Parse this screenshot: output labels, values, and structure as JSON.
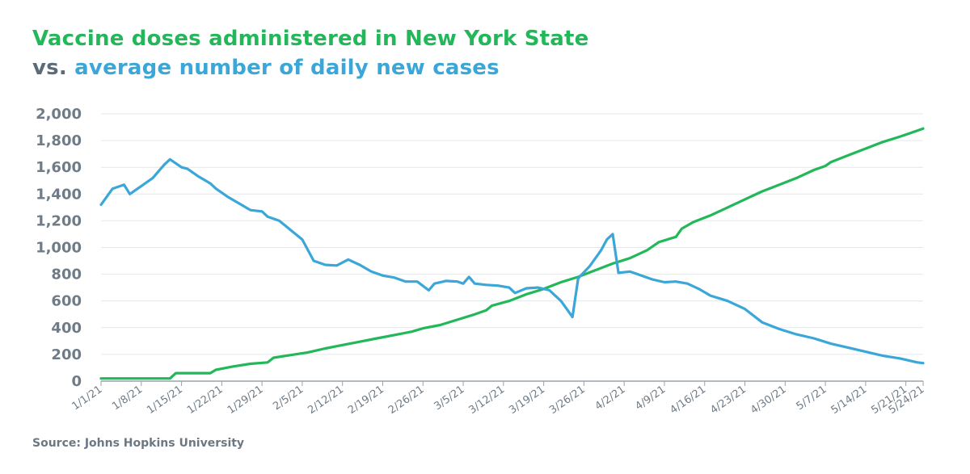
{
  "chart_data": {
    "type": "line",
    "title": "Vaccine doses administered in New York State",
    "subtitle_prefix": "vs.",
    "subtitle": "average number of daily new cases",
    "source": "Source: Johns Hopkins University",
    "xlabel": "",
    "ylabel": "",
    "ylim": [
      0,
      2000
    ],
    "yticks": [
      0,
      200,
      400,
      600,
      800,
      1000,
      1200,
      1400,
      1600,
      1800,
      2000
    ],
    "ytick_labels": [
      "0",
      "200",
      "400",
      "600",
      "800",
      "1,000",
      "1,200",
      "1,400",
      "1,600",
      "1,800",
      "2,000"
    ],
    "xlim": [
      "2021-01-01",
      "2021-05-24"
    ],
    "xticks": [
      "2021-01-01",
      "2021-01-08",
      "2021-01-15",
      "2021-01-22",
      "2021-01-29",
      "2021-02-05",
      "2021-02-12",
      "2021-02-19",
      "2021-02-26",
      "2021-03-05",
      "2021-03-12",
      "2021-03-19",
      "2021-03-26",
      "2021-04-02",
      "2021-04-09",
      "2021-04-16",
      "2021-04-23",
      "2021-04-30",
      "2021-05-07",
      "2021-05-14",
      "2021-05-21",
      "2021-05-24"
    ],
    "xtick_labels": [
      "1/1/21",
      "1/8/21",
      "1/15/21",
      "1/22/21",
      "1/29/21",
      "2/5/21",
      "2/12/21",
      "2/19/21",
      "2/26/21",
      "3/5/21",
      "3/12/21",
      "3/19/21",
      "3/26/21",
      "4/2/21",
      "4/9/21",
      "4/16/21",
      "4/23/21",
      "4/30/21",
      "5/7/21",
      "5/14/21",
      "5/21/21",
      "5/24/21"
    ],
    "grid": true,
    "legend": "none",
    "series": [
      {
        "key": "vaccine",
        "color": "#22b859",
        "points": [
          [
            "2021-01-01",
            20
          ],
          [
            "2021-01-07",
            20
          ],
          [
            "2021-01-13",
            20
          ],
          [
            "2021-01-14",
            60
          ],
          [
            "2021-01-20",
            60
          ],
          [
            "2021-01-21",
            85
          ],
          [
            "2021-01-24",
            110
          ],
          [
            "2021-01-27",
            130
          ],
          [
            "2021-01-30",
            140
          ],
          [
            "2021-01-31",
            175
          ],
          [
            "2021-02-03",
            195
          ],
          [
            "2021-02-06",
            215
          ],
          [
            "2021-02-09",
            245
          ],
          [
            "2021-02-12",
            270
          ],
          [
            "2021-02-15",
            295
          ],
          [
            "2021-02-18",
            320
          ],
          [
            "2021-02-21",
            345
          ],
          [
            "2021-02-24",
            370
          ],
          [
            "2021-02-26",
            395
          ],
          [
            "2021-03-01",
            420
          ],
          [
            "2021-03-04",
            460
          ],
          [
            "2021-03-07",
            500
          ],
          [
            "2021-03-09",
            530
          ],
          [
            "2021-03-10",
            565
          ],
          [
            "2021-03-13",
            600
          ],
          [
            "2021-03-16",
            650
          ],
          [
            "2021-03-19",
            690
          ],
          [
            "2021-03-22",
            740
          ],
          [
            "2021-03-25",
            780
          ],
          [
            "2021-03-28",
            830
          ],
          [
            "2021-03-31",
            880
          ],
          [
            "2021-04-03",
            920
          ],
          [
            "2021-04-06",
            980
          ],
          [
            "2021-04-08",
            1040
          ],
          [
            "2021-04-11",
            1080
          ],
          [
            "2021-04-12",
            1140
          ],
          [
            "2021-04-14",
            1190
          ],
          [
            "2021-04-17",
            1240
          ],
          [
            "2021-04-20",
            1300
          ],
          [
            "2021-04-23",
            1360
          ],
          [
            "2021-04-26",
            1420
          ],
          [
            "2021-04-29",
            1470
          ],
          [
            "2021-05-02",
            1520
          ],
          [
            "2021-05-05",
            1580
          ],
          [
            "2021-05-07",
            1610
          ],
          [
            "2021-05-08",
            1640
          ],
          [
            "2021-05-11",
            1690
          ],
          [
            "2021-05-14",
            1740
          ],
          [
            "2021-05-17",
            1790
          ],
          [
            "2021-05-20",
            1830
          ],
          [
            "2021-05-22",
            1860
          ],
          [
            "2021-05-24",
            1890
          ]
        ]
      },
      {
        "key": "cases",
        "color": "#3aa7d8",
        "points": [
          [
            "2021-01-01",
            1320
          ],
          [
            "2021-01-03",
            1440
          ],
          [
            "2021-01-05",
            1470
          ],
          [
            "2021-01-06",
            1400
          ],
          [
            "2021-01-08",
            1460
          ],
          [
            "2021-01-10",
            1520
          ],
          [
            "2021-01-12",
            1620
          ],
          [
            "2021-01-13",
            1660
          ],
          [
            "2021-01-15",
            1600
          ],
          [
            "2021-01-16",
            1590
          ],
          [
            "2021-01-18",
            1530
          ],
          [
            "2021-01-20",
            1480
          ],
          [
            "2021-01-21",
            1440
          ],
          [
            "2021-01-23",
            1380
          ],
          [
            "2021-01-25",
            1330
          ],
          [
            "2021-01-27",
            1280
          ],
          [
            "2021-01-29",
            1270
          ],
          [
            "2021-01-30",
            1230
          ],
          [
            "2021-02-01",
            1200
          ],
          [
            "2021-02-03",
            1130
          ],
          [
            "2021-02-05",
            1060
          ],
          [
            "2021-02-07",
            900
          ],
          [
            "2021-02-09",
            870
          ],
          [
            "2021-02-11",
            865
          ],
          [
            "2021-02-13",
            910
          ],
          [
            "2021-02-15",
            870
          ],
          [
            "2021-02-17",
            820
          ],
          [
            "2021-02-19",
            790
          ],
          [
            "2021-02-21",
            775
          ],
          [
            "2021-02-23",
            745
          ],
          [
            "2021-02-25",
            745
          ],
          [
            "2021-02-27",
            680
          ],
          [
            "2021-02-28",
            730
          ],
          [
            "2021-03-02",
            750
          ],
          [
            "2021-03-04",
            745
          ],
          [
            "2021-03-05",
            730
          ],
          [
            "2021-03-06",
            780
          ],
          [
            "2021-03-07",
            730
          ],
          [
            "2021-03-09",
            720
          ],
          [
            "2021-03-11",
            715
          ],
          [
            "2021-03-13",
            700
          ],
          [
            "2021-03-14",
            660
          ],
          [
            "2021-03-16",
            695
          ],
          [
            "2021-03-18",
            700
          ],
          [
            "2021-03-20",
            680
          ],
          [
            "2021-03-21",
            640
          ],
          [
            "2021-03-22",
            600
          ],
          [
            "2021-03-23",
            540
          ],
          [
            "2021-03-24",
            480
          ],
          [
            "2021-03-25",
            770
          ],
          [
            "2021-03-27",
            860
          ],
          [
            "2021-03-29",
            980
          ],
          [
            "2021-03-30",
            1060
          ],
          [
            "2021-03-31",
            1100
          ],
          [
            "2021-04-01",
            810
          ],
          [
            "2021-04-03",
            820
          ],
          [
            "2021-04-05",
            790
          ],
          [
            "2021-04-07",
            760
          ],
          [
            "2021-04-09",
            740
          ],
          [
            "2021-04-11",
            745
          ],
          [
            "2021-04-13",
            730
          ],
          [
            "2021-04-15",
            690
          ],
          [
            "2021-04-17",
            640
          ],
          [
            "2021-04-20",
            600
          ],
          [
            "2021-04-23",
            540
          ],
          [
            "2021-04-26",
            440
          ],
          [
            "2021-04-29",
            390
          ],
          [
            "2021-05-02",
            350
          ],
          [
            "2021-05-05",
            320
          ],
          [
            "2021-05-08",
            280
          ],
          [
            "2021-05-11",
            250
          ],
          [
            "2021-05-14",
            220
          ],
          [
            "2021-05-17",
            190
          ],
          [
            "2021-05-20",
            170
          ],
          [
            "2021-05-23",
            140
          ],
          [
            "2021-05-24",
            135
          ]
        ]
      }
    ]
  }
}
